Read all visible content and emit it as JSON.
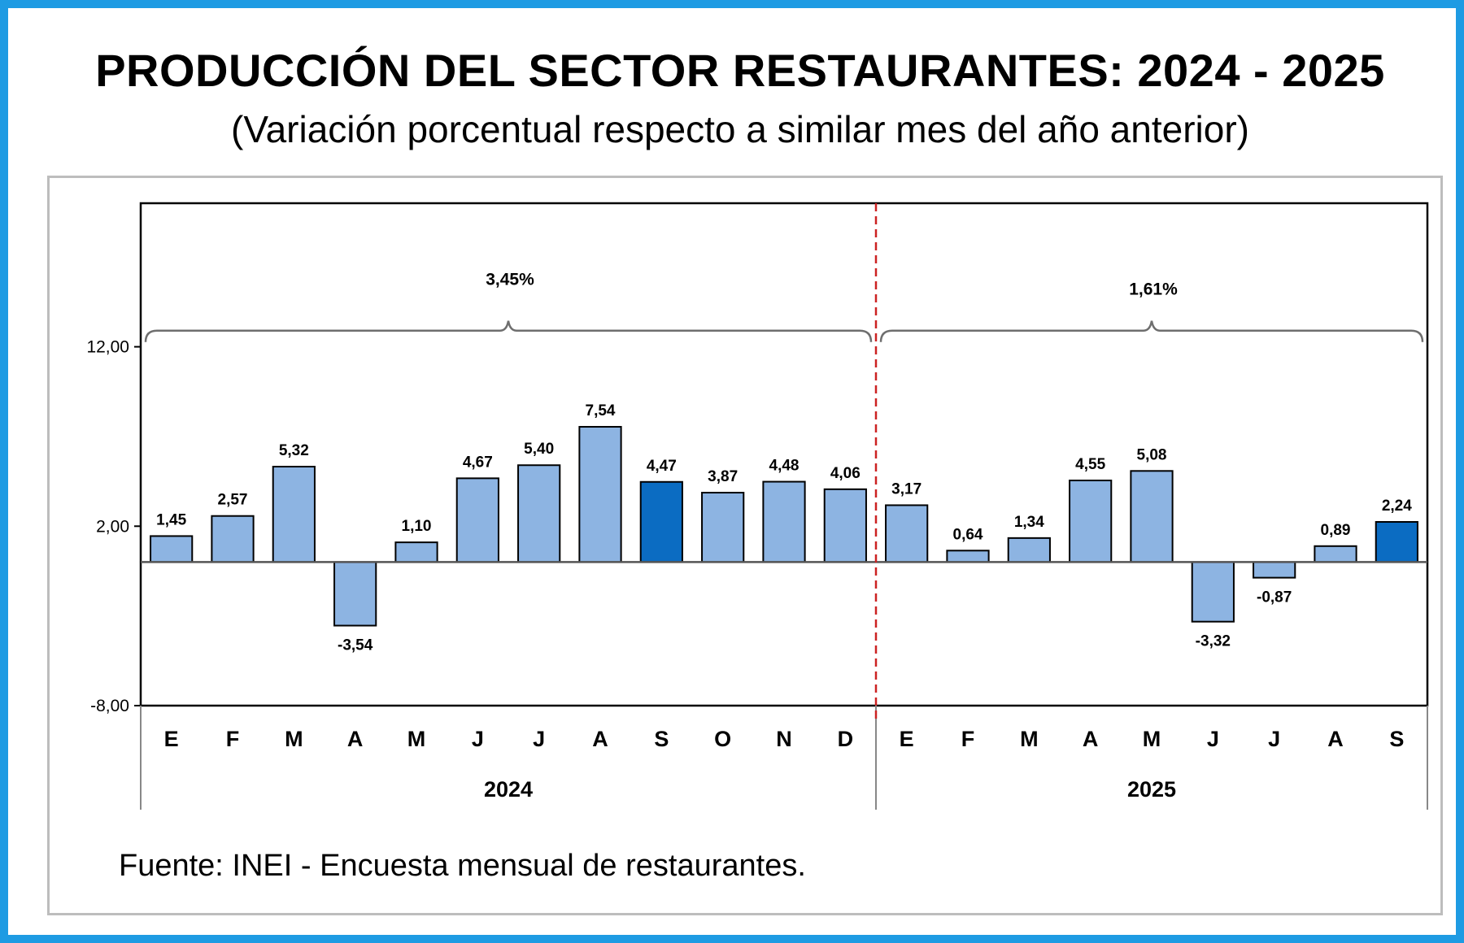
{
  "title": "PRODUCCIÓN DEL SECTOR RESTAURANTES: 2024 - 2025",
  "subtitle": "(Variación porcentual respecto a similar mes del año anterior)",
  "source": "Fuente: INEI - Encuesta mensual de restaurantes.",
  "colors": {
    "bar_normal": "#8db4e2",
    "bar_highlight": "#0b6cc2",
    "bar_stroke": "#000000",
    "divider": "#cc2222",
    "brace": "#6e6e6e",
    "frame": "#1e9be3"
  },
  "chart_data": {
    "type": "bar",
    "title": "PRODUCCIÓN DEL SECTOR RESTAURANTES: 2024 - 2025",
    "subtitle": "(Variación porcentual respecto a similar mes del año anterior)",
    "xlabel": "",
    "ylabel": "",
    "ylim": [
      -8,
      20
    ],
    "yticks": [
      -8,
      2,
      12
    ],
    "ytick_labels": [
      "-8,00",
      "2,00",
      "12,00"
    ],
    "grid": false,
    "legend": "none",
    "categories": [
      "E",
      "F",
      "M",
      "A",
      "M",
      "J",
      "J",
      "A",
      "S",
      "O",
      "N",
      "D",
      "E",
      "F",
      "M",
      "A",
      "M",
      "J",
      "J",
      "A",
      "S"
    ],
    "values": [
      1.45,
      2.57,
      5.32,
      -3.54,
      1.1,
      4.67,
      5.4,
      7.54,
      4.47,
      3.87,
      4.48,
      4.06,
      3.17,
      0.64,
      1.34,
      4.55,
      5.08,
      -3.32,
      -0.87,
      0.89,
      2.24
    ],
    "value_labels": [
      "1,45",
      "2,57",
      "5,32",
      "-3,54",
      "1,10",
      "4,67",
      "5,40",
      "7,54",
      "4,47",
      "3,87",
      "4,48",
      "4,06",
      "3,17",
      "0,64",
      "1,34",
      "4,55",
      "5,08",
      "-3,32",
      "-0,87",
      "0,89",
      "2,24"
    ],
    "highlighted": [
      false,
      false,
      false,
      false,
      false,
      false,
      false,
      false,
      true,
      false,
      false,
      false,
      false,
      false,
      false,
      false,
      false,
      false,
      false,
      false,
      true
    ],
    "groups": [
      {
        "label": "2024",
        "start": 0,
        "count": 12,
        "annotation": "3,45%"
      },
      {
        "label": "2025",
        "start": 12,
        "count": 9,
        "annotation": "1,61%"
      }
    ]
  }
}
